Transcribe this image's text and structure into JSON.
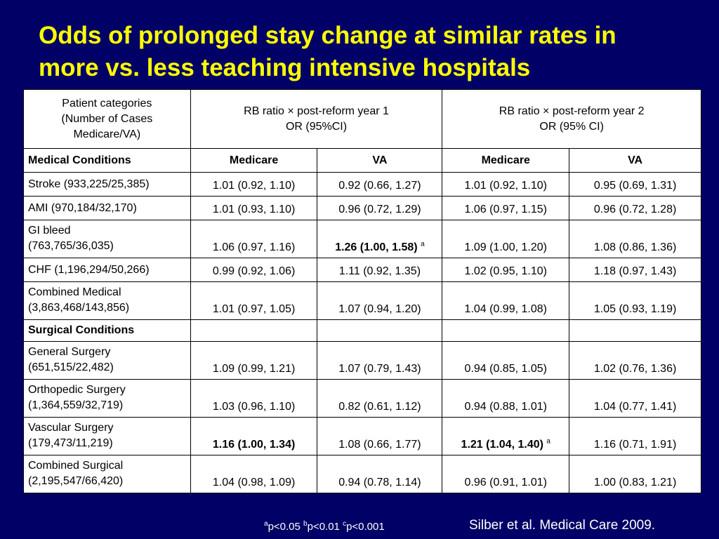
{
  "title": {
    "line1": "Odds of prolonged stay change at similar rates in",
    "line2": "more vs. less teaching intensive hospitals"
  },
  "table": {
    "header": {
      "col1_line1": "Patient categories",
      "col1_line2": "(Number of Cases",
      "col1_line3": "Medicare/VA)",
      "group1_line1": "RB ratio × post-reform year 1",
      "group1_line2": "OR (95%CI)",
      "group2_line1": "RB ratio × post-reform year 2",
      "group2_line2": "OR (95% CI)"
    },
    "subheader": {
      "col1": "Medical Conditions",
      "medicare1": "Medicare",
      "va1": "VA",
      "medicare2": "Medicare",
      "va2": "VA"
    },
    "rows": {
      "r0": {
        "l1": "Stroke (933,225/25,385)",
        "l2": "",
        "c1": "1.01 (0.92, 1.10)",
        "c2": "0.92 (0.66, 1.27)",
        "c3": "1.01 (0.92, 1.10)",
        "c4": "0.95 (0.69, 1.31)"
      },
      "r1": {
        "l1": "AMI (970,184/32,170)",
        "l2": "",
        "c1": "1.01 (0.93, 1.10)",
        "c2": "0.96 (0.72, 1.29)",
        "c3": "1.06 (0.97, 1.15)",
        "c4": "0.96 (0.72, 1.28)"
      },
      "r2": {
        "l1": "GI bleed",
        "l2": "(763,765/36,035)",
        "c1": "1.06 (0.97, 1.16)",
        "c2": "1.26 (1.00, 1.58)",
        "c2_sup": "a",
        "c3": "1.09 (1.00, 1.20)",
        "c4": "1.08 (0.86, 1.36)"
      },
      "r3": {
        "l1": "CHF (1,196,294/50,266)",
        "l2": "",
        "c1": "0.99 (0.92, 1.06)",
        "c2": "1.11 (0.92, 1.35)",
        "c3": "1.02 (0.95, 1.10)",
        "c4": "1.18 (0.97, 1.43)"
      },
      "r4": {
        "l1": "Combined Medical",
        "l2": "(3,863,468/143,856)",
        "c1": "1.01 (0.97, 1.05)",
        "c2": "1.07 (0.94, 1.20)",
        "c3": "1.04 (0.99, 1.08)",
        "c4": "1.05 (0.93, 1.19)"
      },
      "section_surgical": "Surgical Conditions",
      "r5": {
        "l1": "General Surgery",
        "l2": "(651,515/22,482)",
        "c1": "1.09 (0.99, 1.21)",
        "c2": "1.07 (0.79, 1.43)",
        "c3": "0.94 (0.85, 1.05)",
        "c4": "1.02 (0.76, 1.36)"
      },
      "r6": {
        "l1": "Orthopedic Surgery",
        "l2": "(1,364,559/32,719)",
        "c1": "1.03 (0.96, 1.10)",
        "c2": "0.82 (0.61, 1.12)",
        "c3": "0.94 (0.88, 1.01)",
        "c4": "1.04 (0.77, 1.41)"
      },
      "r7": {
        "l1": "Vascular Surgery",
        "l2": "(179,473/11,219)",
        "c1": "1.16 (1.00, 1.34)",
        "c2": "1.08 (0.66, 1.77)",
        "c3": "1.21 (1.04, 1.40)",
        "c3_sup": "a",
        "c4": "1.16 (0.71, 1.91)"
      },
      "r8": {
        "l1": "Combined Surgical",
        "l2": "(2,195,547/66,420)",
        "c1": "1.04 (0.98, 1.09)",
        "c2": "0.94 (0.78, 1.14)",
        "c3": "0.96 (0.91, 1.01)",
        "c4": "1.00 (0.83, 1.21)"
      }
    }
  },
  "footnote": {
    "a_sup": "a",
    "a_text": "p<0.05",
    "b_sup": "b",
    "b_text": "p<0.01",
    "c_sup": "c",
    "c_text": "p<0.001"
  },
  "citation": "Silber et al. Medical Care 2009.",
  "colors": {
    "background": "#000066",
    "title": "#ffff00",
    "footer_text": "#ffffff"
  }
}
